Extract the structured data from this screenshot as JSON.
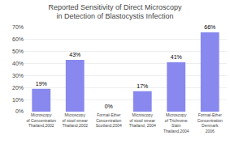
{
  "chart_data": {
    "type": "bar",
    "title": "Reported Sensitivity of Direct Microscopy\nin Detection of Blastocystis Infection",
    "categories": [
      "Microscopy\nof Concentration\nThailand,2002",
      "Microscopy\nof stool smear\nThailand,2002",
      "Formal-Ether\nConcentration\nScotland,2004",
      "Microscopy\nof stool smear\nThailand, 2004",
      "Microscopy\nof Trichrome\nStain\nThailand,2004",
      "Formal-Ether\nConcentration\nDenmark\n2006"
    ],
    "values": [
      19,
      43,
      0,
      17,
      41,
      66
    ],
    "value_labels": [
      "19%",
      "43%",
      "0%",
      "17%",
      "41%",
      "66%"
    ],
    "data_labels": true,
    "color": "#8888EE",
    "ylim": [
      0,
      70
    ],
    "yticks": [
      {
        "value": 0,
        "label": "0%"
      },
      {
        "value": 10,
        "label": "10%"
      },
      {
        "value": 20,
        "label": "20%"
      },
      {
        "value": 30,
        "label": "30%"
      },
      {
        "value": 40,
        "label": "40%"
      },
      {
        "value": 50,
        "label": "50%"
      },
      {
        "value": 60,
        "label": "60%"
      },
      {
        "value": 70,
        "label": "70%"
      }
    ],
    "grid": true
  }
}
